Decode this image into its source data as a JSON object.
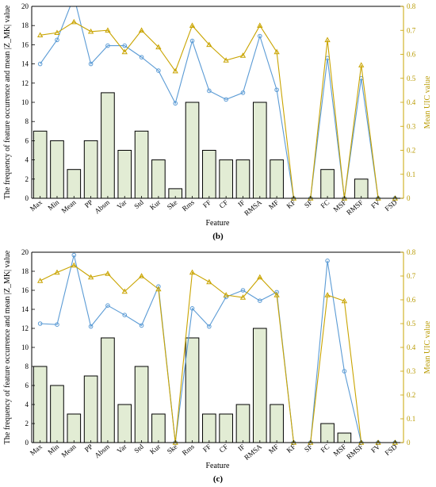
{
  "chart_data": [
    {
      "type": "bar",
      "caption": "(b)",
      "categories": [
        "Max",
        "Min",
        "Mean",
        "PP",
        "Absm",
        "Var",
        "Std",
        "Kur",
        "Ske",
        "Rms",
        "FF",
        "CF",
        "IF",
        "RMSA",
        "MF",
        "KF",
        "SF",
        "FC",
        "MSF",
        "RMSF",
        "FV",
        "FSD"
      ],
      "xlabel": "Feature",
      "ylabel": "The frequency of feature occurrence and mean |Z_MK| value",
      "ylabel_right": "Mean UIC value",
      "ylim": [
        0,
        20
      ],
      "ylim_right": [
        0,
        0.8
      ],
      "yticks": [
        0,
        2,
        4,
        6,
        8,
        10,
        12,
        14,
        16,
        18,
        20
      ],
      "yticks_right": [
        0,
        0.1,
        0.2,
        0.3,
        0.4,
        0.5,
        0.6,
        0.7,
        0.8
      ],
      "colors": {
        "bar_fill": "#e2ecd4",
        "bar_edge": "#000000",
        "blue": "#5b9bd5",
        "gold": "#c9a400"
      },
      "series": [
        {
          "kind": "bar",
          "values": [
            7,
            6,
            3,
            6,
            11,
            5,
            7,
            4,
            1,
            10,
            5,
            4,
            4,
            10,
            4,
            0,
            0,
            3,
            0,
            2,
            0,
            0
          ]
        },
        {
          "kind": "line-circle",
          "values": [
            14,
            16.5,
            21,
            14,
            15.9,
            15.9,
            14.7,
            13.3,
            9.9,
            16.4,
            11.2,
            10.3,
            11,
            16.9,
            11.3,
            0,
            0,
            14.6,
            0,
            12.5,
            0,
            0
          ]
        },
        {
          "kind": "line-triangle",
          "axis": "right",
          "values": [
            0.68,
            0.69,
            0.735,
            0.695,
            0.7,
            0.61,
            0.7,
            0.63,
            0.53,
            0.72,
            0.64,
            0.575,
            0.595,
            0.72,
            0.61,
            0,
            0,
            0.66,
            0,
            0.555,
            0,
            0
          ]
        }
      ]
    },
    {
      "type": "bar",
      "caption": "(c)",
      "categories": [
        "Max",
        "Min",
        "Mean",
        "PP",
        "Absm",
        "Var",
        "Std",
        "Kur",
        "Ske",
        "Rms",
        "FF",
        "CF",
        "IF",
        "RMSA",
        "MF",
        "KF",
        "SF",
        "FC",
        "MSF",
        "RMSF",
        "FV",
        "FSD"
      ],
      "xlabel": "Feature",
      "ylabel": "The frequency of feature occurrence and mean |Z_MK| value",
      "ylabel_right": "Mean UIC value",
      "ylim": [
        0,
        20
      ],
      "ylim_right": [
        0,
        0.8
      ],
      "yticks": [
        0,
        2,
        4,
        6,
        8,
        10,
        12,
        14,
        16,
        18,
        20
      ],
      "yticks_right": [
        0,
        0.1,
        0.2,
        0.3,
        0.4,
        0.5,
        0.6,
        0.7,
        0.8
      ],
      "colors": {
        "bar_fill": "#e2ecd4",
        "bar_edge": "#000000",
        "blue": "#5b9bd5",
        "gold": "#c9a400"
      },
      "series": [
        {
          "kind": "bar",
          "values": [
            8,
            6,
            3,
            7,
            11,
            4,
            8,
            3,
            0,
            11,
            3,
            3,
            4,
            12,
            4,
            0,
            0,
            2,
            1,
            0,
            0,
            0
          ]
        },
        {
          "kind": "line-circle",
          "values": [
            12.5,
            12.4,
            19.7,
            12.2,
            14.4,
            13.4,
            12.3,
            16.4,
            0,
            14.1,
            12.2,
            15.3,
            16,
            14.9,
            15.8,
            0,
            0,
            19.1,
            7.5,
            0,
            0,
            0
          ]
        },
        {
          "kind": "line-triangle",
          "axis": "right",
          "values": [
            0.68,
            0.715,
            0.745,
            0.695,
            0.71,
            0.635,
            0.7,
            0.645,
            0,
            0.715,
            0.675,
            0.62,
            0.61,
            0.695,
            0.62,
            0,
            0,
            0.62,
            0.595,
            0,
            0,
            0
          ]
        }
      ]
    }
  ]
}
